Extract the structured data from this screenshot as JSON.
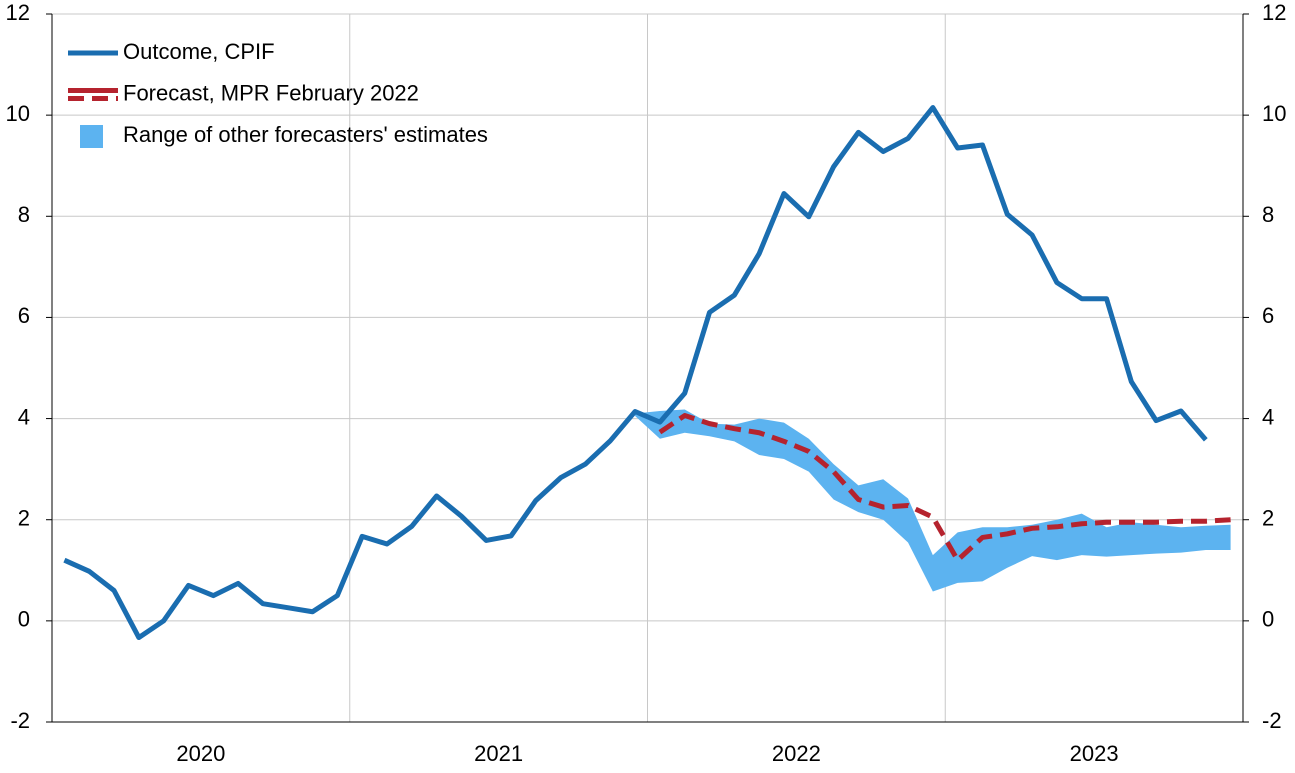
{
  "chart_data": {
    "type": "line",
    "categories": [
      "2020",
      null,
      null,
      null,
      null,
      null,
      null,
      null,
      null,
      null,
      null,
      null,
      "2021",
      null,
      null,
      null,
      null,
      null,
      null,
      null,
      null,
      null,
      null,
      null,
      "2022",
      null,
      null,
      null,
      null,
      null,
      null,
      null,
      null,
      null,
      null,
      null,
      "2023",
      null,
      null,
      null,
      null,
      null,
      null,
      null,
      null,
      null,
      null,
      null
    ],
    "series": [
      {
        "name": "Outcome, CPIF",
        "color": "#1a6db0",
        "values": [
          1.2,
          0.98,
          0.6,
          -0.33,
          0.0,
          0.7,
          0.5,
          0.74,
          0.34,
          0.26,
          0.18,
          0.5,
          1.67,
          1.52,
          1.87,
          2.47,
          2.07,
          1.59,
          1.68,
          2.38,
          2.83,
          3.1,
          3.56,
          4.14,
          3.93,
          4.5,
          6.1,
          6.44,
          7.26,
          8.45,
          7.99,
          8.98,
          9.66,
          9.28,
          9.54,
          10.15,
          9.35,
          9.41,
          8.04,
          7.63,
          6.69,
          6.37,
          6.37,
          4.73,
          3.96,
          4.15,
          3.58,
          null
        ]
      },
      {
        "name": "Forecast, MPR February 2022",
        "color": "#b5232e",
        "dashed": true,
        "values": [
          null,
          null,
          null,
          null,
          null,
          null,
          null,
          null,
          null,
          null,
          null,
          null,
          null,
          null,
          null,
          null,
          null,
          null,
          null,
          null,
          null,
          null,
          null,
          null,
          3.73,
          4.06,
          3.9,
          3.8,
          3.72,
          3.55,
          3.35,
          2.95,
          2.4,
          2.25,
          2.28,
          2.05,
          1.2,
          1.65,
          1.72,
          1.83,
          1.86,
          1.92,
          1.95,
          1.95,
          1.95,
          1.97,
          1.97,
          2.0
        ]
      },
      {
        "name": "Range of other forecasters' estimates",
        "color": "#5cb3f0",
        "band": true,
        "high": [
          null,
          null,
          null,
          null,
          null,
          null,
          null,
          null,
          null,
          null,
          null,
          null,
          null,
          null,
          null,
          null,
          null,
          null,
          null,
          null,
          null,
          null,
          null,
          4.1,
          4.15,
          4.18,
          3.9,
          3.88,
          4.0,
          3.92,
          3.6,
          3.1,
          2.68,
          2.8,
          2.42,
          1.3,
          1.75,
          1.85,
          1.85,
          1.9,
          2.0,
          2.12,
          1.85,
          1.95,
          1.9,
          1.85,
          1.88,
          1.9
        ],
        "low": [
          null,
          null,
          null,
          null,
          null,
          null,
          null,
          null,
          null,
          null,
          null,
          null,
          null,
          null,
          null,
          null,
          null,
          null,
          null,
          null,
          null,
          null,
          null,
          4.05,
          3.6,
          3.72,
          3.65,
          3.55,
          3.28,
          3.2,
          2.95,
          2.4,
          2.15,
          2.0,
          1.55,
          0.58,
          0.75,
          0.78,
          1.05,
          1.28,
          1.2,
          1.3,
          1.27,
          1.3,
          1.33,
          1.35,
          1.4,
          1.4
        ]
      }
    ],
    "ylim": [
      -2,
      12
    ],
    "yticks": [
      -2,
      0,
      2,
      4,
      6,
      8,
      10,
      12
    ],
    "y2lim": [
      -2,
      12
    ],
    "y2ticks": [
      -2,
      0,
      2,
      4,
      6,
      8,
      10,
      12
    ],
    "grid": true,
    "legend": "top-left"
  }
}
